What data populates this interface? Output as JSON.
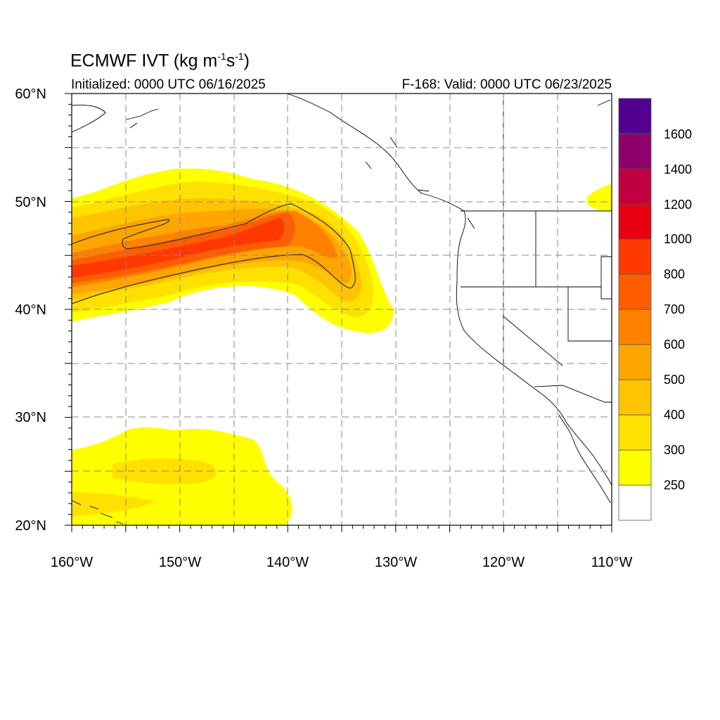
{
  "title": {
    "main": "ECMWF IVT (kg m",
    "exp1": "-1",
    "mid": "s",
    "exp2": "-1",
    "close": ")"
  },
  "initialized": "Initialized: 0000 UTC 06/16/2025",
  "valid": "F-168: Valid: 0000 UTC 06/23/2025",
  "map": {
    "lon_range": [
      -160,
      -110
    ],
    "lat_range": [
      20,
      60
    ],
    "lon_labels": [
      "160°W",
      "150°W",
      "140°W",
      "130°W",
      "120°W",
      "110°W"
    ],
    "lat_labels": [
      "60°N",
      "50°N",
      "40°N",
      "30°N",
      "20°N"
    ],
    "grid": "dashed every 5 degrees"
  },
  "colorbar": {
    "labels": [
      "1600",
      "1400",
      "1200",
      "1000",
      "800",
      "700",
      "600",
      "500",
      "400",
      "300",
      "250"
    ],
    "levels": [
      250,
      300,
      400,
      500,
      600,
      700,
      800,
      1000,
      1200,
      1400,
      1600
    ],
    "colors": [
      "#ffffff",
      "#ffff00",
      "#ffe100",
      "#ffc400",
      "#ffa500",
      "#ff8100",
      "#ff5d00",
      "#ff3900",
      "#e60010",
      "#c00040",
      "#8e006a",
      "#520090"
    ]
  },
  "contour_color": "#333333"
}
